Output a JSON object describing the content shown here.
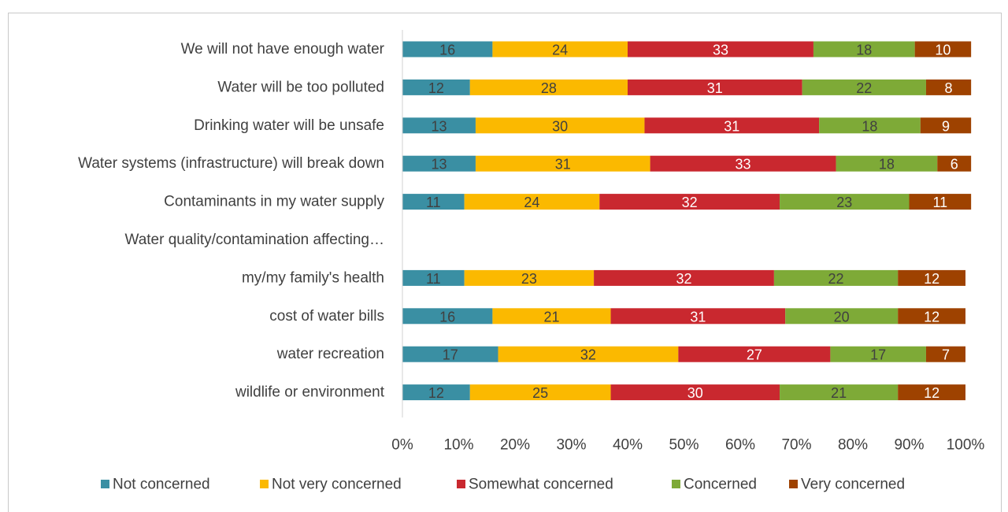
{
  "chart_data": {
    "type": "bar",
    "orientation": "horizontal",
    "stacked": "percent",
    "categories": [
      "We will not have enough water",
      "Water will be too polluted",
      "Drinking water will be unsafe",
      "Water systems (infrastructure) will break down",
      "Contaminants in my water supply",
      "Water quality/contamination affecting…",
      "my/my family's health",
      "cost of water bills",
      "water recreation",
      "wildlife or environment"
    ],
    "series": [
      {
        "name": "Not concerned",
        "color": "#3A8FA3",
        "label_color": "#404040",
        "values": [
          16,
          12,
          13,
          13,
          11,
          null,
          11,
          16,
          17,
          12
        ]
      },
      {
        "name": "Not very concerned",
        "color": "#FBB900",
        "label_color": "#404040",
        "values": [
          24,
          28,
          30,
          31,
          24,
          null,
          23,
          21,
          32,
          25
        ]
      },
      {
        "name": "Somewhat concerned",
        "color": "#C9282F",
        "label_color": "#ffffff",
        "values": [
          33,
          31,
          31,
          33,
          32,
          null,
          32,
          31,
          27,
          30
        ]
      },
      {
        "name": "Concerned",
        "color": "#7EAA37",
        "label_color": "#404040",
        "values": [
          18,
          22,
          18,
          18,
          23,
          null,
          22,
          20,
          17,
          21
        ]
      },
      {
        "name": "Very concerned",
        "color": "#9E4200",
        "label_color": "#ffffff",
        "values": [
          10,
          8,
          9,
          6,
          11,
          null,
          12,
          12,
          7,
          12
        ]
      }
    ],
    "x_ticks": [
      "0%",
      "10%",
      "20%",
      "30%",
      "40%",
      "50%",
      "60%",
      "70%",
      "80%",
      "90%",
      "100%"
    ],
    "xlim": [
      0,
      100
    ],
    "grid": false,
    "legend_position": "bottom"
  }
}
